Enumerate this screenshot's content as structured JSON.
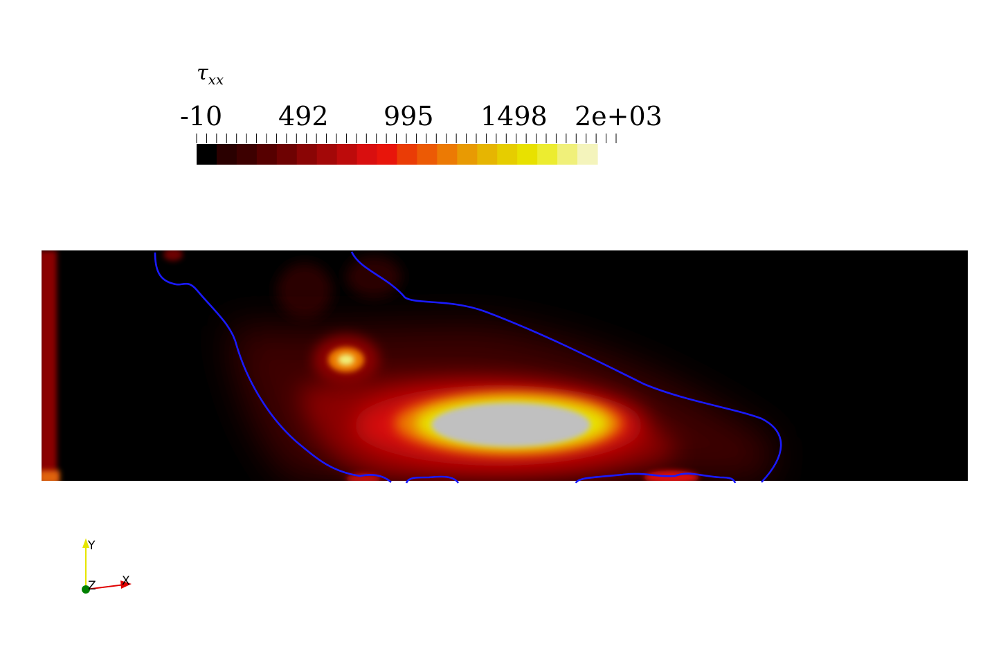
{
  "legend": {
    "title_symbol": "τ",
    "title_subscript": "xx",
    "tick_labels": [
      "-10",
      "492",
      "995",
      "1498",
      "2e+03"
    ],
    "range": [
      -10,
      2000
    ],
    "color_steps": [
      "#000000",
      "#2a0000",
      "#3d0000",
      "#560000",
      "#6e0202",
      "#8a0505",
      "#a30808",
      "#bd0b0b",
      "#d90f0f",
      "#e8150b",
      "#ea3c06",
      "#ec5a05",
      "#ec7a04",
      "#e89a03",
      "#e6b502",
      "#e6cd00",
      "#e8e100",
      "#ecec30",
      "#f0f07a",
      "#f4f4bc"
    ]
  },
  "field": {
    "contour_color": "#1a1aff",
    "peak_color": "#c0c0c0"
  },
  "axes_triad": {
    "y_label": "Y",
    "x_label": "X",
    "z_label": "Z",
    "y_color": "#e6e600",
    "x_color": "#e00000",
    "z_color": "#008000"
  }
}
